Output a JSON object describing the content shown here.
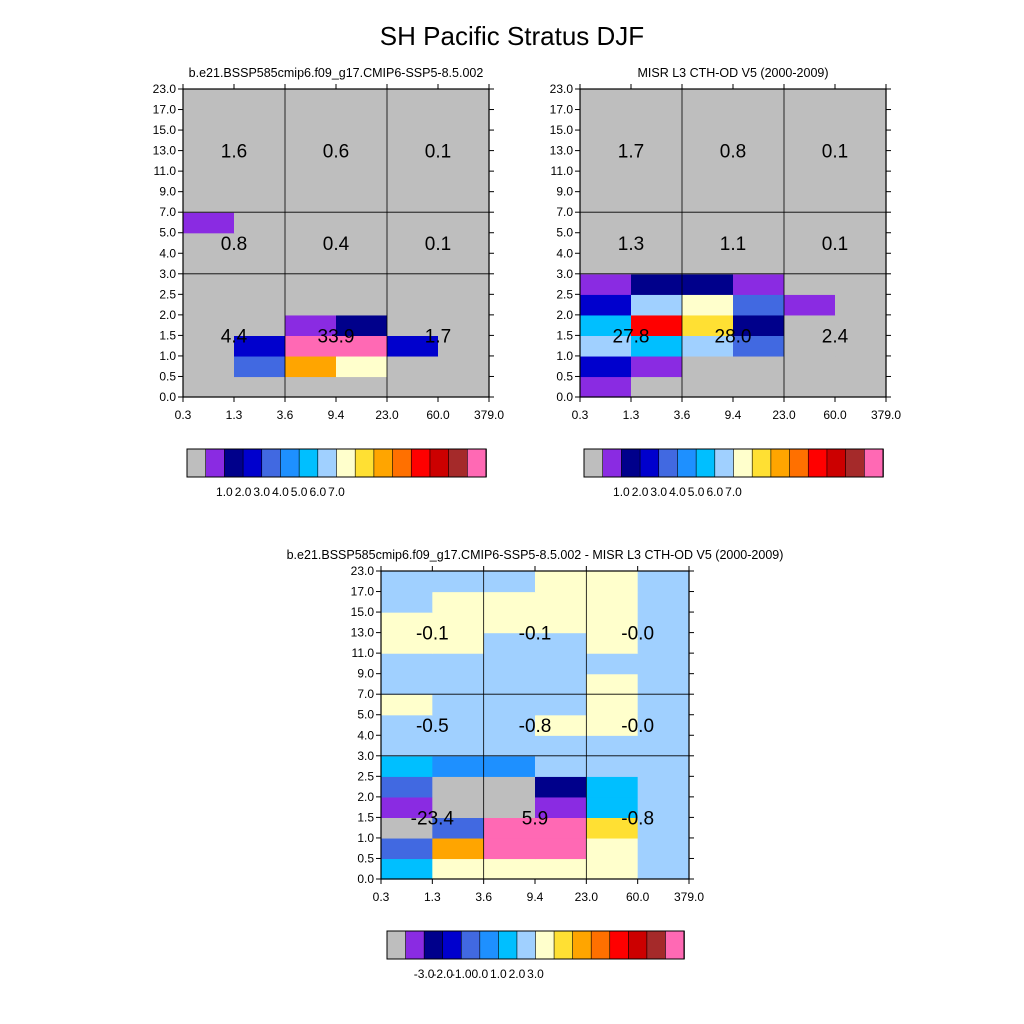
{
  "title": "SH Pacific Stratus DJF",
  "palettes": {
    "abs": [
      "#bebebe",
      "#8a2be2",
      "#00008b",
      "#0000cd",
      "#4169e1",
      "#1e90ff",
      "#00bfff",
      "#a0d0ff",
      "#ffffcc",
      "#ffe033",
      "#ffa500",
      "#ff7000",
      "#ff0000",
      "#cc0000",
      "#a52a2a",
      "#ff69b4"
    ],
    "diff": [
      "#bebebe",
      "#8a2be2",
      "#00008b",
      "#0000cd",
      "#4169e1",
      "#1e90ff",
      "#00bfff",
      "#a0d0ff",
      "#ffffcc",
      "#ffe033",
      "#ffa500",
      "#ff7000",
      "#ff0000",
      "#cc0000",
      "#a52a2a",
      "#ff69b4"
    ]
  },
  "chart_data": [
    {
      "type": "heatmap",
      "title": "b.e21.BSSP585cmip6.f09_g17.CMIP6-SSP5-8.5.002",
      "x_tick_labels": [
        "0.3",
        "1.3",
        "3.6",
        "9.4",
        "23.0",
        "60.0",
        "379.0"
      ],
      "y_tick_labels": [
        "0.0",
        "0.5",
        "1.0",
        "1.5",
        "2.0",
        "2.5",
        "3.0",
        "4.0",
        "5.0",
        "7.0",
        "9.0",
        "11.0",
        "13.0",
        "15.0",
        "17.0",
        "23.0"
      ],
      "colorbar_labels": [
        "1.0",
        "2.0",
        "3.0",
        "4.0",
        "5.0",
        "6.0",
        "7.0"
      ],
      "cell_colors": [
        [
          0,
          0,
          0,
          0,
          0,
          0
        ],
        [
          0,
          4,
          10,
          8,
          0,
          0
        ],
        [
          0,
          3,
          15,
          15,
          3,
          0
        ],
        [
          0,
          0,
          1,
          2,
          0,
          0
        ],
        [
          0,
          0,
          0,
          0,
          0,
          0
        ],
        [
          0,
          0,
          0,
          0,
          0,
          0
        ],
        [
          0,
          0,
          0,
          0,
          0,
          0
        ],
        [
          0,
          0,
          0,
          0,
          0,
          0
        ],
        [
          1,
          0,
          0,
          0,
          0,
          0
        ],
        [
          0,
          0,
          0,
          0,
          0,
          0
        ],
        [
          0,
          0,
          0,
          0,
          0,
          0
        ],
        [
          0,
          0,
          0,
          0,
          0,
          0
        ],
        [
          0,
          0,
          0,
          0,
          0,
          0
        ],
        [
          0,
          0,
          0,
          0,
          0,
          0
        ],
        [
          0,
          0,
          0,
          0,
          0,
          0
        ]
      ],
      "block_values": [
        [
          "4.4",
          "33.9",
          "1.7"
        ],
        [
          "0.8",
          "0.4",
          "0.1"
        ],
        [
          "1.6",
          "0.6",
          "0.1"
        ]
      ]
    },
    {
      "type": "heatmap",
      "title": "MISR L3 CTH-OD V5 (2000-2009)",
      "x_tick_labels": [
        "0.3",
        "1.3",
        "3.6",
        "9.4",
        "23.0",
        "60.0",
        "379.0"
      ],
      "y_tick_labels": [
        "0.0",
        "0.5",
        "1.0",
        "1.5",
        "2.0",
        "2.5",
        "3.0",
        "4.0",
        "5.0",
        "7.0",
        "9.0",
        "11.0",
        "13.0",
        "15.0",
        "17.0",
        "23.0"
      ],
      "colorbar_labels": [
        "1.0",
        "2.0",
        "3.0",
        "4.0",
        "5.0",
        "6.0",
        "7.0"
      ],
      "cell_colors": [
        [
          1,
          0,
          0,
          0,
          0,
          0
        ],
        [
          3,
          1,
          0,
          0,
          0,
          0
        ],
        [
          7,
          6,
          7,
          4,
          0,
          0
        ],
        [
          6,
          12,
          9,
          2,
          0,
          0
        ],
        [
          3,
          7,
          8,
          4,
          1,
          0
        ],
        [
          1,
          2,
          2,
          1,
          0,
          0
        ],
        [
          0,
          0,
          0,
          0,
          0,
          0
        ],
        [
          0,
          0,
          0,
          0,
          0,
          0
        ],
        [
          0,
          0,
          0,
          0,
          0,
          0
        ],
        [
          0,
          0,
          0,
          0,
          0,
          0
        ],
        [
          0,
          0,
          0,
          0,
          0,
          0
        ],
        [
          0,
          0,
          0,
          0,
          0,
          0
        ],
        [
          0,
          0,
          0,
          0,
          0,
          0
        ],
        [
          0,
          0,
          0,
          0,
          0,
          0
        ],
        [
          0,
          0,
          0,
          0,
          0,
          0
        ]
      ],
      "block_values": [
        [
          "27.8",
          "28.0",
          "2.4"
        ],
        [
          "1.3",
          "1.1",
          "0.1"
        ],
        [
          "1.7",
          "0.8",
          "0.1"
        ]
      ]
    },
    {
      "type": "heatmap",
      "title": "b.e21.BSSP585cmip6.f09_g17.CMIP6-SSP5-8.5.002 - MISR L3 CTH-OD V5 (2000-2009)",
      "x_tick_labels": [
        "0.3",
        "1.3",
        "3.6",
        "9.4",
        "23.0",
        "60.0",
        "379.0"
      ],
      "y_tick_labels": [
        "0.0",
        "0.5",
        "1.0",
        "1.5",
        "2.0",
        "2.5",
        "3.0",
        "4.0",
        "5.0",
        "7.0",
        "9.0",
        "11.0",
        "13.0",
        "15.0",
        "17.0",
        "23.0"
      ],
      "colorbar_labels": [
        "-3.0",
        "-2.0",
        "-1.0",
        "0.0",
        "1.0",
        "2.0",
        "3.0"
      ],
      "cell_colors": [
        [
          6,
          8,
          8,
          8,
          8,
          7
        ],
        [
          4,
          10,
          15,
          15,
          8,
          7
        ],
        [
          0,
          4,
          15,
          15,
          9,
          7
        ],
        [
          1,
          0,
          0,
          1,
          6,
          7
        ],
        [
          4,
          0,
          0,
          2,
          6,
          7
        ],
        [
          6,
          5,
          5,
          7,
          7,
          7
        ],
        [
          7,
          7,
          7,
          7,
          7,
          7
        ],
        [
          7,
          7,
          7,
          8,
          8,
          7
        ],
        [
          8,
          7,
          7,
          7,
          8,
          7
        ],
        [
          7,
          7,
          7,
          7,
          8,
          7
        ],
        [
          7,
          7,
          7,
          7,
          7,
          7
        ],
        [
          8,
          8,
          7,
          7,
          8,
          7
        ],
        [
          8,
          8,
          8,
          8,
          8,
          7
        ],
        [
          7,
          8,
          8,
          8,
          8,
          7
        ],
        [
          7,
          7,
          7,
          8,
          8,
          7
        ]
      ],
      "block_values": [
        [
          "-23.4",
          "5.9",
          "-0.8"
        ],
        [
          "-0.5",
          "-0.8",
          "-0.0"
        ],
        [
          "-0.1",
          "-0.1",
          "-0.0"
        ]
      ]
    }
  ]
}
